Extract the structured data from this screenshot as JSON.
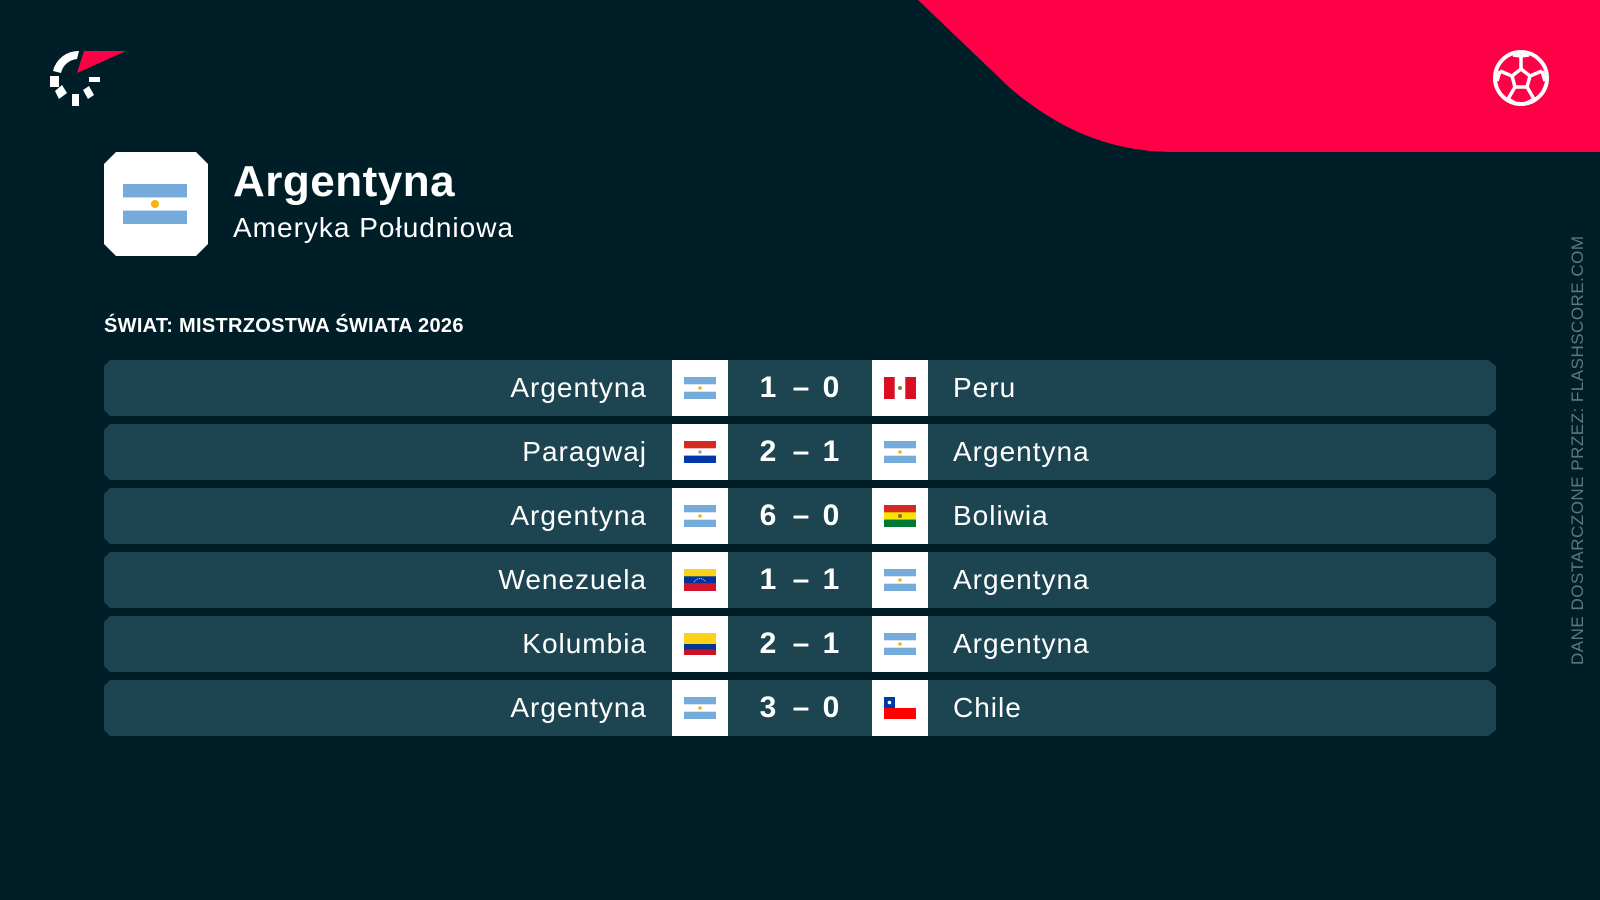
{
  "brand": {
    "logo": "flashscore-logo",
    "sport_icon": "soccer-ball-icon",
    "accent": "#ff0046",
    "background": "#001e28",
    "row_color": "#1d4451"
  },
  "team": {
    "name": "Argentyna",
    "region": "Ameryka Południowa",
    "flag": "argentina"
  },
  "section_title": "ŚWIAT: MISTRZOSTWA ŚWIATA 2026",
  "matches": [
    {
      "home": "Argentyna",
      "home_flag": "argentina",
      "home_score": "1",
      "away_score": "0",
      "away": "Peru",
      "away_flag": "peru"
    },
    {
      "home": "Paragwaj",
      "home_flag": "paraguay",
      "home_score": "2",
      "away_score": "1",
      "away": "Argentyna",
      "away_flag": "argentina"
    },
    {
      "home": "Argentyna",
      "home_flag": "argentina",
      "home_score": "6",
      "away_score": "0",
      "away": "Boliwia",
      "away_flag": "bolivia"
    },
    {
      "home": "Wenezuela",
      "home_flag": "venezuela",
      "home_score": "1",
      "away_score": "1",
      "away": "Argentyna",
      "away_flag": "argentina"
    },
    {
      "home": "Kolumbia",
      "home_flag": "colombia",
      "home_score": "2",
      "away_score": "1",
      "away": "Argentyna",
      "away_flag": "argentina"
    },
    {
      "home": "Argentyna",
      "home_flag": "argentina",
      "home_score": "3",
      "away_score": "0",
      "away": "Chile",
      "away_flag": "chile"
    }
  ],
  "score_separator": "–",
  "credit": "DANE DOSTARCZONE PRZEZ: FLASHSCORE.COM"
}
